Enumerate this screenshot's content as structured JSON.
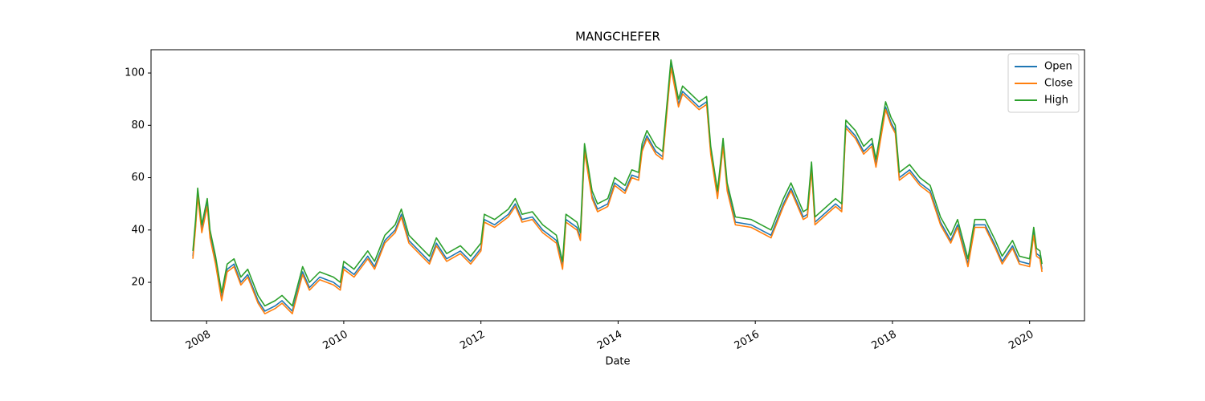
{
  "chart_data": {
    "type": "line",
    "title": "MANGCHEFER",
    "xlabel": "Date",
    "x": [
      2007.8,
      2007.84,
      2007.87,
      2007.93,
      2008.01,
      2008.05,
      2008.13,
      2008.22,
      2008.3,
      2008.4,
      2008.5,
      2008.6,
      2008.75,
      2008.85,
      2009.0,
      2009.1,
      2009.25,
      2009.4,
      2009.5,
      2009.65,
      2009.85,
      2009.95,
      2010.0,
      2010.15,
      2010.35,
      2010.45,
      2010.6,
      2010.75,
      2010.84,
      2010.95,
      2011.1,
      2011.25,
      2011.35,
      2011.5,
      2011.7,
      2011.85,
      2012.0,
      2012.05,
      2012.2,
      2012.4,
      2012.5,
      2012.6,
      2012.75,
      2012.9,
      2013.1,
      2013.19,
      2013.24,
      2013.4,
      2013.45,
      2013.51,
      2013.62,
      2013.7,
      2013.85,
      2013.95,
      2014.1,
      2014.2,
      2014.3,
      2014.35,
      2014.42,
      2014.55,
      2014.65,
      2014.77,
      2014.88,
      2014.94,
      2015.18,
      2015.29,
      2015.35,
      2015.45,
      2015.53,
      2015.59,
      2015.71,
      2015.94,
      2016.23,
      2016.41,
      2016.52,
      2016.7,
      2016.76,
      2016.82,
      2016.87,
      2017.17,
      2017.26,
      2017.32,
      2017.46,
      2017.58,
      2017.7,
      2017.76,
      2017.9,
      2017.98,
      2018.04,
      2018.1,
      2018.25,
      2018.4,
      2018.55,
      2018.7,
      2018.85,
      2018.95,
      2019.1,
      2019.2,
      2019.35,
      2019.5,
      2019.6,
      2019.75,
      2019.85,
      2020.0,
      2020.06,
      2020.1,
      2020.15,
      2020.18
    ],
    "series": [
      {
        "name": "Open",
        "color": "#1f77b4",
        "values": [
          30,
          42,
          54,
          40,
          50,
          38,
          28,
          14,
          25,
          27,
          20,
          23,
          13,
          9,
          11,
          13,
          9,
          24,
          18,
          22,
          20,
          18,
          26,
          23,
          30,
          26,
          36,
          40,
          46,
          36,
          32,
          28,
          35,
          29,
          32,
          28,
          33,
          44,
          42,
          46,
          50,
          44,
          45,
          40,
          36,
          26,
          44,
          41,
          37,
          71,
          53,
          48,
          50,
          58,
          55,
          61,
          60,
          71,
          76,
          70,
          68,
          103,
          88,
          93,
          87,
          89,
          70,
          53,
          73,
          56,
          43,
          42,
          38,
          50,
          56,
          45,
          46,
          64,
          43,
          50,
          48,
          80,
          76,
          70,
          73,
          65,
          87,
          81,
          78,
          60,
          63,
          58,
          55,
          43,
          36,
          42,
          27,
          42,
          42,
          34,
          28,
          34,
          28,
          27,
          39,
          31,
          30,
          25
        ]
      },
      {
        "name": "Close",
        "color": "#ff7f0e",
        "values": [
          29,
          41,
          53,
          39,
          49,
          37,
          27,
          13,
          24,
          26,
          19,
          22,
          12,
          8,
          10,
          12,
          8,
          23,
          17,
          21,
          19,
          17,
          25,
          22,
          29,
          25,
          35,
          39,
          45,
          35,
          31,
          27,
          34,
          28,
          31,
          27,
          32,
          43,
          41,
          45,
          49,
          43,
          44,
          39,
          35,
          25,
          43,
          40,
          36,
          70,
          52,
          47,
          49,
          57,
          54,
          60,
          59,
          70,
          75,
          69,
          67,
          102,
          87,
          92,
          86,
          88,
          69,
          52,
          72,
          55,
          42,
          41,
          37,
          49,
          55,
          44,
          45,
          63,
          42,
          49,
          47,
          79,
          75,
          69,
          72,
          64,
          86,
          80,
          77,
          59,
          62,
          57,
          54,
          42,
          35,
          41,
          26,
          41,
          41,
          33,
          27,
          33,
          27,
          26,
          38,
          30,
          29,
          24
        ]
      },
      {
        "name": "High",
        "color": "#2ca02c",
        "values": [
          32,
          44,
          56,
          42,
          52,
          40,
          30,
          16,
          27,
          29,
          22,
          25,
          15,
          11,
          13,
          15,
          11,
          26,
          20,
          24,
          22,
          20,
          28,
          25,
          32,
          28,
          38,
          42,
          48,
          38,
          34,
          30,
          37,
          31,
          34,
          30,
          35,
          46,
          44,
          48,
          52,
          46,
          47,
          42,
          38,
          28,
          46,
          43,
          39,
          73,
          55,
          50,
          52,
          60,
          57,
          63,
          62,
          73,
          78,
          72,
          70,
          105,
          90,
          95,
          89,
          91,
          72,
          55,
          75,
          58,
          45,
          44,
          40,
          52,
          58,
          47,
          48,
          66,
          45,
          52,
          50,
          82,
          78,
          72,
          75,
          67,
          89,
          83,
          80,
          62,
          65,
          60,
          57,
          45,
          38,
          44,
          29,
          44,
          44,
          36,
          30,
          36,
          30,
          29,
          41,
          33,
          32,
          27
        ]
      }
    ],
    "xlim": [
      2007.19,
      2020.8
    ],
    "xticks": [
      2008,
      2010,
      2012,
      2014,
      2016,
      2018,
      2020
    ],
    "ylim": [
      5.3,
      108.9
    ],
    "yticks": [
      20,
      40,
      60,
      80,
      100
    ],
    "legend": "upper right"
  }
}
